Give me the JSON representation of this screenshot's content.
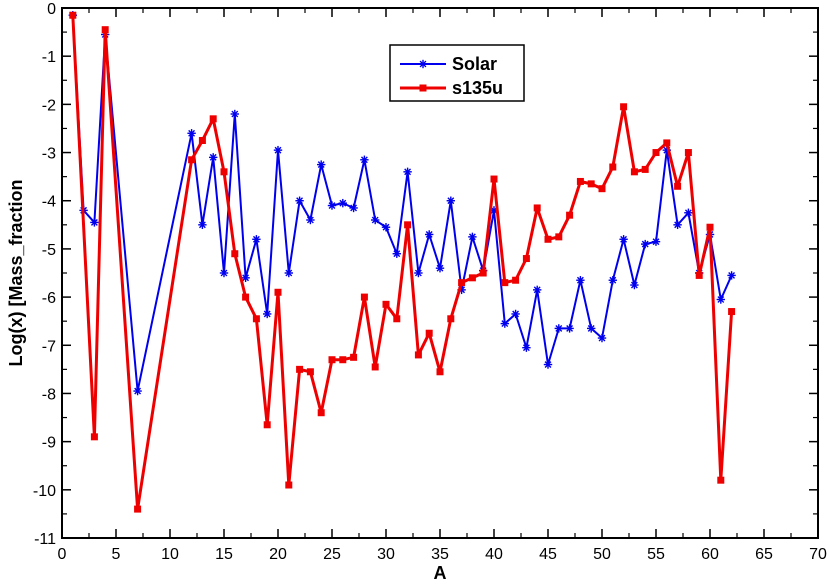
{
  "chart_data": {
    "type": "line",
    "xlabel": "A",
    "ylabel": "Log(x) [Mass_fraction",
    "xlim": [
      0,
      70
    ],
    "ylim": [
      -11,
      0
    ],
    "xticks": [
      0,
      5,
      10,
      15,
      20,
      25,
      30,
      35,
      40,
      45,
      50,
      55,
      60,
      65,
      70
    ],
    "yticks": [
      0,
      -1,
      -2,
      -3,
      -4,
      -5,
      -6,
      -7,
      -8,
      -9,
      -10,
      -11
    ],
    "xtick_labels": [
      "0",
      "5",
      "10",
      "15",
      "20",
      "25",
      "30",
      "35",
      "40",
      "45",
      "50",
      "55",
      "60",
      "65",
      "70"
    ],
    "ytick_labels": [
      "0",
      "-1",
      "-2",
      "-3",
      "-4",
      "-5",
      "-6",
      "-7",
      "-8",
      "-9",
      "-10",
      "-11"
    ],
    "legend_position": "top-center",
    "grid": false,
    "series": [
      {
        "name": "Solar",
        "color": "#0000ee",
        "marker": "asterisk",
        "x": [
          1,
          2,
          3,
          4,
          7,
          12,
          13,
          14,
          15,
          16,
          17,
          18,
          19,
          20,
          21,
          22,
          23,
          24,
          25,
          26,
          27,
          28,
          29,
          30,
          31,
          32,
          33,
          34,
          35,
          36,
          37,
          38,
          39,
          40,
          41,
          42,
          43,
          44,
          45,
          46,
          47,
          48,
          49,
          50,
          51,
          52,
          53,
          54,
          55,
          56,
          57,
          58,
          59,
          60,
          61,
          62
        ],
        "y": [
          -0.15,
          -4.2,
          -4.45,
          -0.55,
          -7.95,
          -2.6,
          -4.5,
          -3.1,
          -5.5,
          -2.2,
          -5.6,
          -4.8,
          -6.35,
          -2.95,
          -5.5,
          -4.0,
          -4.4,
          -3.25,
          -4.1,
          -4.05,
          -4.15,
          -3.15,
          -4.4,
          -4.55,
          -5.1,
          -3.4,
          -5.5,
          -4.7,
          -5.4,
          -4.0,
          -5.85,
          -4.75,
          -5.45,
          -4.2,
          -6.55,
          -6.35,
          -7.05,
          -5.85,
          -7.4,
          -6.65,
          -6.65,
          -5.65,
          -6.65,
          -6.85,
          -5.65,
          -4.8,
          -5.75,
          -4.9,
          -4.85,
          -2.95,
          -4.5,
          -4.25,
          -5.5,
          -4.7,
          -6.05,
          -5.55
        ]
      },
      {
        "name": "s135u",
        "color": "#ee0000",
        "marker": "square",
        "x": [
          1,
          3,
          4,
          7,
          12,
          13,
          14,
          15,
          16,
          17,
          18,
          19,
          20,
          21,
          22,
          23,
          24,
          25,
          26,
          27,
          28,
          29,
          30,
          31,
          32,
          33,
          34,
          35,
          36,
          37,
          38,
          39,
          40,
          41,
          42,
          43,
          44,
          45,
          46,
          47,
          48,
          49,
          50,
          51,
          52,
          53,
          54,
          55,
          56,
          57,
          58,
          59,
          60,
          61,
          62
        ],
        "y": [
          -0.15,
          -8.9,
          -0.45,
          -10.4,
          -3.15,
          -2.75,
          -2.3,
          -3.4,
          -5.1,
          -6.0,
          -6.45,
          -8.65,
          -5.9,
          -9.9,
          -7.5,
          -7.55,
          -8.4,
          -7.3,
          -7.3,
          -7.25,
          -6.0,
          -7.45,
          -6.15,
          -6.45,
          -4.5,
          -7.2,
          -6.75,
          -7.55,
          -6.45,
          -5.7,
          -5.6,
          -5.5,
          -3.55,
          -5.7,
          -5.65,
          -5.2,
          -4.15,
          -4.8,
          -4.75,
          -4.3,
          -3.6,
          -3.65,
          -3.75,
          -3.3,
          -2.05,
          -3.4,
          -3.35,
          -3.0,
          -2.8,
          -3.7,
          -3.0,
          -5.55,
          -4.55,
          -9.8,
          -6.3
        ]
      }
    ]
  }
}
